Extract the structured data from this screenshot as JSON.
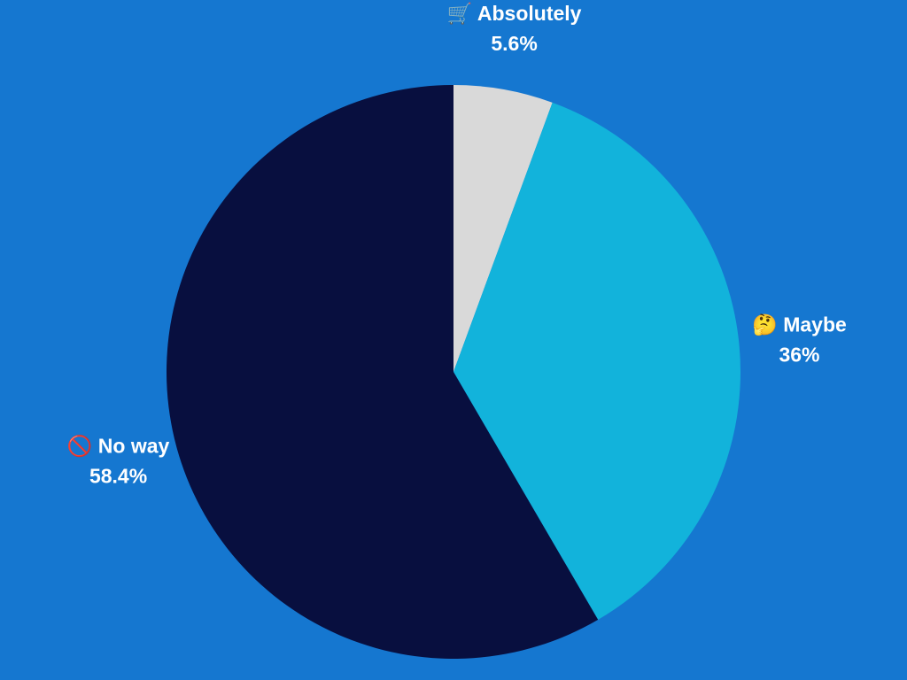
{
  "chart_data": {
    "type": "pie",
    "categories": [
      "🛒 Absolutely",
      "🤔 Maybe",
      "🚫 No way"
    ],
    "values": [
      5.6,
      36,
      58.4
    ],
    "value_labels": [
      "5.6%",
      "36%",
      "58.4%"
    ],
    "colors": [
      "#d9d9d9",
      "#12b3db",
      "#080f3f"
    ]
  }
}
